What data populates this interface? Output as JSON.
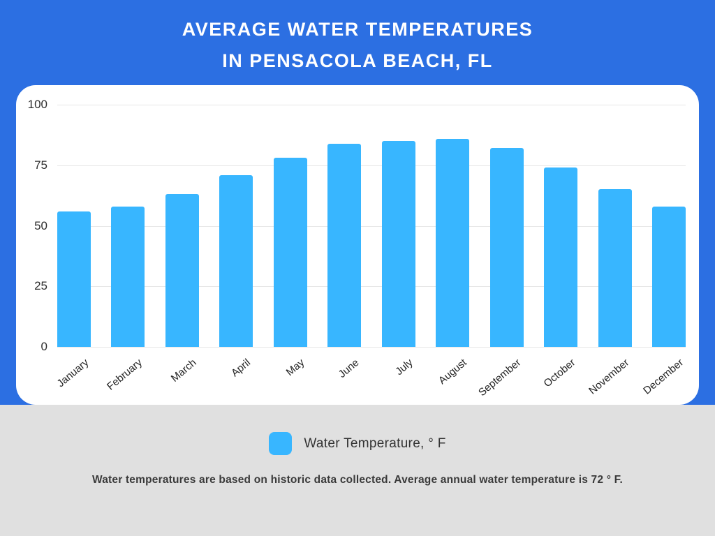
{
  "title": {
    "line1": "AVERAGE WATER TEMPERATURES",
    "line2": "IN PENSACOLA BEACH, FL"
  },
  "chart_data": {
    "type": "bar",
    "title": "AVERAGE WATER TEMPERATURES IN PENSACOLA BEACH, FL",
    "categories": [
      "January",
      "February",
      "March",
      "April",
      "May",
      "June",
      "July",
      "August",
      "September",
      "October",
      "November",
      "December"
    ],
    "values": [
      56,
      58,
      63,
      71,
      78,
      84,
      85,
      86,
      82,
      74,
      65,
      58
    ],
    "xlabel": "",
    "ylabel": "",
    "ylim": [
      0,
      100
    ],
    "yticks": [
      0,
      25,
      50,
      75,
      100
    ],
    "grid": true,
    "legend_position": "bottom",
    "series_name": "Water Temperature, ° F",
    "bar_color": "#38B6FF"
  },
  "legend": {
    "label": "Water Temperature, ° F",
    "swatch_color": "#38B6FF"
  },
  "note": "Water temperatures are based on historic data collected. Average annual water temperature is 72 ° F.",
  "colors": {
    "background_blue": "#2C6FE2",
    "bar_blue": "#38B6FF",
    "footer_gray": "#E0E0E0",
    "panel_white": "#FFFFFF",
    "gridline_gray": "#E7E7E7",
    "title_text": "#FFFFFF",
    "axis_text": "#2E2E2E"
  }
}
